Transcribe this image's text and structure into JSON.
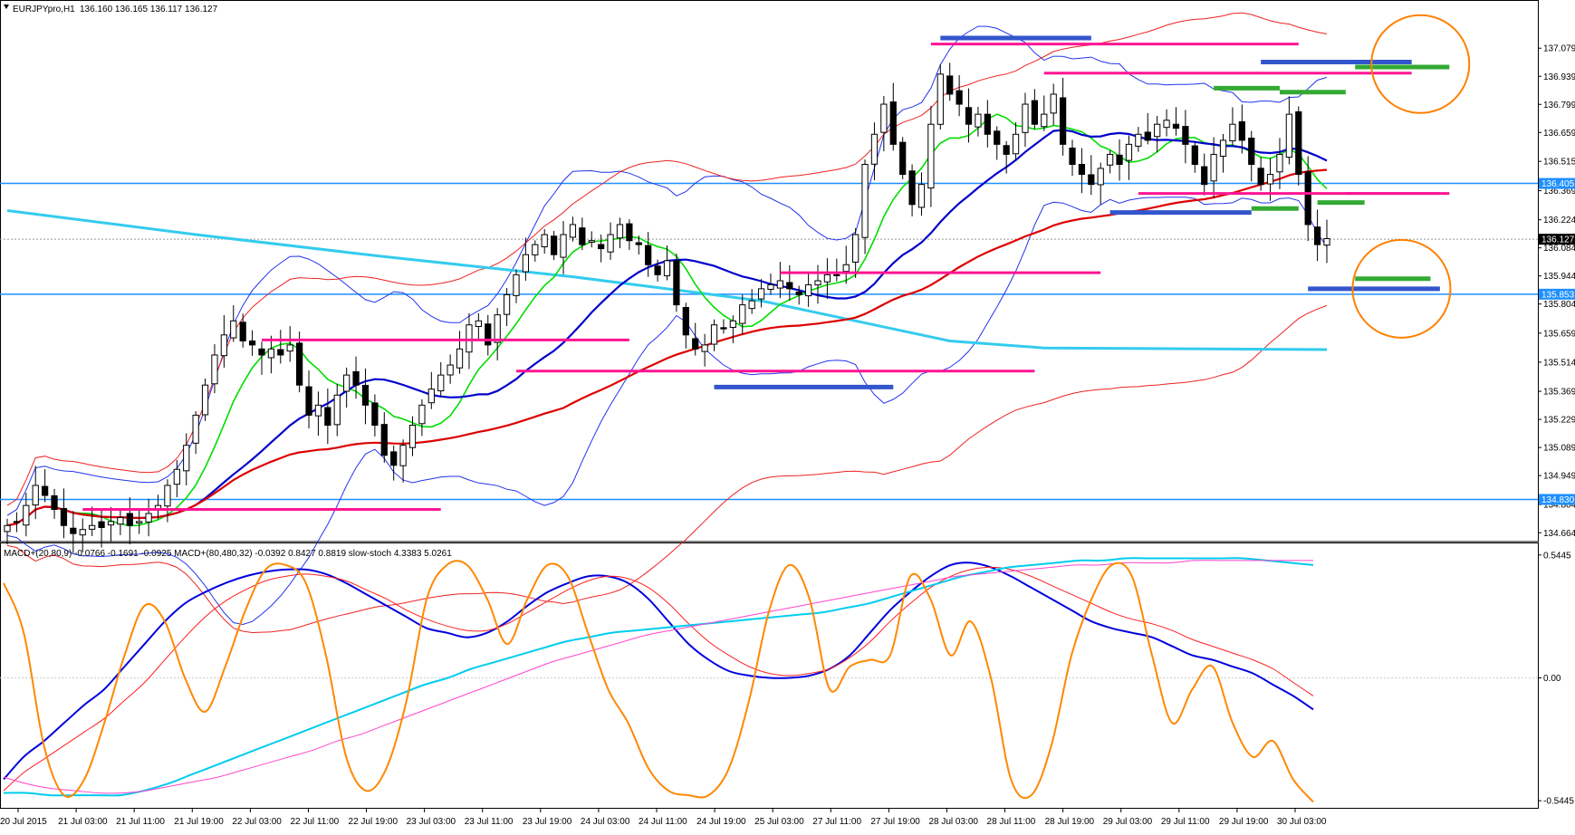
{
  "chart_data": [
    {
      "type": "candlestick",
      "header": {
        "symbol": "EURJPYpro,H1",
        "ohlc": "136.160 136.165 136.117 136.127"
      },
      "ylim": [
        134.62,
        137.22
      ],
      "y_ticks": [
        "137.079",
        "136.939",
        "136.799",
        "136.659",
        "136.515",
        "136.369",
        "136.224",
        "136.084",
        "135.944",
        "135.804",
        "135.659",
        "135.514",
        "135.369",
        "135.229",
        "135.089",
        "134.949",
        "134.804",
        "134.664"
      ],
      "price_boxes": [
        "136.405",
        "136.127",
        "135.853",
        "134.830"
      ],
      "current_price": 136.127,
      "levels_lightblue": [
        136.405,
        135.853,
        134.83
      ],
      "x_labels": [
        "20 Jul 2015",
        "21 Jul 03:00",
        "21 Jul 11:00",
        "21 Jul 19:00",
        "22 Jul 03:00",
        "22 Jul 11:00",
        "22 Jul 19:00",
        "23 Jul 03:00",
        "23 Jul 11:00",
        "23 Jul 19:00",
        "24 Jul 03:00",
        "24 Jul 11:00",
        "24 Jul 19:00",
        "25 Jul 03:00",
        "27 Jul 11:00",
        "27 Jul 19:00",
        "28 Jul 03:00",
        "28 Jul 11:00",
        "28 Jul 19:00",
        "29 Jul 03:00",
        "29 Jul 11:00",
        "29 Jul 19:00",
        "30 Jul 03:00"
      ],
      "close_path": [
        134.7,
        134.72,
        134.8,
        134.9,
        134.85,
        134.78,
        134.7,
        134.66,
        134.68,
        134.7,
        134.69,
        134.72,
        134.74,
        134.7,
        134.72,
        134.76,
        134.8,
        134.9,
        134.98,
        135.1,
        135.25,
        135.4,
        135.55,
        135.65,
        135.72,
        135.62,
        135.6,
        135.55,
        135.58,
        135.55,
        135.6,
        135.4,
        135.25,
        135.3,
        135.2,
        135.35,
        135.45,
        135.4,
        135.3,
        135.2,
        135.05,
        135.0,
        135.1,
        135.2,
        135.3,
        135.38,
        135.45,
        135.5,
        135.58,
        135.7,
        135.72,
        135.6,
        135.75,
        135.85,
        135.95,
        136.05,
        136.1,
        136.15,
        136.05,
        136.15,
        136.2,
        136.1,
        136.12,
        136.08,
        136.15,
        136.2,
        136.12,
        136.1,
        136.0,
        135.95,
        136.02,
        135.8,
        135.65,
        135.58,
        135.6,
        135.7,
        135.68,
        135.72,
        135.8,
        135.82,
        135.88,
        135.9,
        135.92,
        135.88,
        135.85,
        135.9,
        135.92,
        135.95,
        135.95,
        136.0,
        136.15,
        136.5,
        136.65,
        136.8,
        136.6,
        136.45,
        136.3,
        136.4,
        136.7,
        136.95,
        136.85,
        136.8,
        136.7,
        136.75,
        136.65,
        136.6,
        136.55,
        136.65,
        136.8,
        136.7,
        136.75,
        136.85,
        136.6,
        136.5,
        136.45,
        136.4,
        136.48,
        136.55,
        136.5,
        136.6,
        136.65,
        136.62,
        136.7,
        136.72,
        136.68,
        136.6,
        136.5,
        136.4,
        136.55,
        136.62,
        136.7,
        136.62,
        136.5,
        136.4,
        136.45,
        136.55,
        136.75,
        136.45,
        136.2,
        136.1,
        136.13
      ],
      "series": [
        {
          "name": "",
          "color": "#00dd00",
          "period": 8
        },
        {
          "name": "",
          "color": "#0000cc",
          "period": 21
        },
        {
          "name": "",
          "color": "#dd0000",
          "period": 60
        }
      ],
      "sma200_points": [
        [
          0,
          136.27
        ],
        [
          20,
          136.15
        ],
        [
          40,
          136.04
        ],
        [
          60,
          135.94
        ],
        [
          80,
          135.82
        ],
        [
          90,
          135.72
        ],
        [
          100,
          135.62
        ],
        [
          110,
          135.585
        ],
        [
          140,
          135.577
        ]
      ],
      "bollinger_note": "",
      "hlines_magenta": [
        {
          "i0": 8,
          "i1": 46,
          "y": 134.78
        },
        {
          "i0": 27,
          "i1": 66,
          "y": 135.625
        },
        {
          "i0": 54,
          "i1": 109,
          "y": 135.47
        },
        {
          "i0": 82,
          "i1": 116,
          "y": 135.96
        },
        {
          "i0": 98,
          "i1": 137,
          "y": 137.1
        },
        {
          "i0": 110,
          "i1": 149,
          "y": 136.955
        },
        {
          "i0": 120,
          "i1": 153,
          "y": 136.355
        },
        {
          "i0": 142,
          "i1": 152,
          "y": 136.355
        }
      ],
      "hlines_blue": [
        {
          "i0": 99,
          "i1": 115,
          "y": 137.13
        },
        {
          "i0": 133,
          "i1": 149,
          "y": 137.01
        },
        {
          "i0": 75,
          "i1": 94,
          "y": 135.39
        },
        {
          "i0": 117,
          "i1": 132,
          "y": 136.26
        },
        {
          "i0": 138,
          "i1": 152,
          "y": 135.88
        }
      ],
      "hlines_green": [
        {
          "i0": 143,
          "i1": 153,
          "y": 136.985
        },
        {
          "i0": 128,
          "i1": 135,
          "y": 136.88
        },
        {
          "i0": 135,
          "i1": 142,
          "y": 136.86
        },
        {
          "i0": 132,
          "i1": 137,
          "y": 136.28
        },
        {
          "i0": 139,
          "i1": 144,
          "y": 136.31
        },
        {
          "i0": 143,
          "i1": 151,
          "y": 135.93
        }
      ],
      "circles": [
        {
          "i": 148,
          "y": 137.0
        },
        {
          "i": 146,
          "y": 135.88
        }
      ]
    },
    {
      "type": "line",
      "header": "MACD+(20,80,9) -0.0766 -0.1691 -0.0925  MACD+(80,480,32) -0.0392 0.8427 0.8819  slow-stoch 4.3383 5.0261",
      "ylim": [
        -0.58,
        0.58
      ],
      "y_ticks": [
        "0.5445",
        "0.00",
        "-0.5445"
      ],
      "series": [
        {
          "name": "",
          "color": "#0000dd",
          "values": [
            -0.45,
            -0.35,
            -0.28,
            -0.2,
            -0.12,
            -0.05,
            0.05,
            0.15,
            0.25,
            0.33,
            0.38,
            0.42,
            0.45,
            0.47,
            0.48,
            0.48,
            0.46,
            0.42,
            0.37,
            0.32,
            0.27,
            0.22,
            0.2,
            0.18,
            0.2,
            0.25,
            0.32,
            0.38,
            0.42,
            0.45,
            0.45,
            0.42,
            0.35,
            0.25,
            0.15,
            0.08,
            0.03,
            0.01,
            0.0,
            0.0,
            0.01,
            0.04,
            0.1,
            0.2,
            0.3,
            0.38,
            0.45,
            0.5,
            0.51,
            0.49,
            0.45,
            0.4,
            0.35,
            0.3,
            0.25,
            0.22,
            0.2,
            0.18,
            0.14,
            0.1,
            0.08,
            0.05,
            0.02,
            -0.03,
            -0.08,
            -0.14
          ]
        },
        {
          "name": "",
          "color": "#ff2020",
          "values": [
            -0.5,
            -0.42,
            -0.36,
            -0.3,
            -0.24,
            -0.18,
            -0.1,
            -0.02,
            0.08,
            0.18,
            0.27,
            0.34,
            0.39,
            0.43,
            0.45,
            0.46,
            0.45,
            0.43,
            0.39,
            0.35,
            0.3,
            0.26,
            0.23,
            0.21,
            0.21,
            0.24,
            0.29,
            0.34,
            0.39,
            0.43,
            0.45,
            0.44,
            0.4,
            0.33,
            0.24,
            0.16,
            0.1,
            0.05,
            0.02,
            0.01,
            0.02,
            0.04,
            0.09,
            0.16,
            0.25,
            0.33,
            0.4,
            0.45,
            0.48,
            0.49,
            0.48,
            0.45,
            0.41,
            0.37,
            0.33,
            0.29,
            0.26,
            0.24,
            0.21,
            0.17,
            0.14,
            0.11,
            0.08,
            0.04,
            -0.02,
            -0.08
          ]
        },
        {
          "name": "",
          "color": "#00ccee",
          "values": [
            -0.51,
            -0.51,
            -0.52,
            -0.52,
            -0.52,
            -0.52,
            -0.5,
            -0.47,
            -0.43,
            -0.39,
            -0.35,
            -0.31,
            -0.27,
            -0.23,
            -0.19,
            -0.15,
            -0.11,
            -0.07,
            -0.03,
            0.0,
            0.04,
            0.07,
            0.1,
            0.13,
            0.16,
            0.18,
            0.2,
            0.21,
            0.22,
            0.23,
            0.24,
            0.25,
            0.26,
            0.27,
            0.28,
            0.29,
            0.31,
            0.33,
            0.36,
            0.39,
            0.42,
            0.45,
            0.47,
            0.49,
            0.5,
            0.51,
            0.52,
            0.52,
            0.53,
            0.53,
            0.53,
            0.53,
            0.53,
            0.53,
            0.52,
            0.51,
            0.5
          ]
        },
        {
          "name": "",
          "color": "#ff44cc",
          "values": [
            -0.44,
            -0.47,
            -0.49,
            -0.5,
            -0.51,
            -0.51,
            -0.5,
            -0.48,
            -0.46,
            -0.44,
            -0.41,
            -0.38,
            -0.35,
            -0.32,
            -0.28,
            -0.25,
            -0.21,
            -0.17,
            -0.13,
            -0.09,
            -0.05,
            -0.01,
            0.03,
            0.07,
            0.1,
            0.13,
            0.16,
            0.19,
            0.21,
            0.23,
            0.25,
            0.27,
            0.29,
            0.31,
            0.33,
            0.35,
            0.37,
            0.39,
            0.41,
            0.43,
            0.45,
            0.46,
            0.47,
            0.48,
            0.49,
            0.5,
            0.5,
            0.51,
            0.51,
            0.51,
            0.52,
            0.52,
            0.52,
            0.52,
            0.52,
            0.52
          ]
        },
        {
          "name": "",
          "color": "#ff8800",
          "values": [
            0.42,
            0.2,
            -0.3,
            -0.52,
            -0.45,
            -0.2,
            0.1,
            0.32,
            0.25,
            0.0,
            -0.15,
            0.05,
            0.3,
            0.48,
            0.5,
            0.42,
            0.1,
            -0.35,
            -0.5,
            -0.4,
            -0.1,
            0.35,
            0.5,
            0.5,
            0.35,
            0.15,
            0.35,
            0.5,
            0.45,
            0.2,
            -0.05,
            -0.2,
            -0.4,
            -0.5,
            -0.52,
            -0.52,
            -0.4,
            -0.1,
            0.3,
            0.5,
            0.35,
            -0.05,
            0.05,
            0.08,
            0.1,
            0.45,
            0.35,
            0.1,
            0.25,
            0.0,
            -0.45,
            -0.52,
            -0.3,
            0.1,
            0.35,
            0.5,
            0.45,
            0.1,
            -0.2,
            -0.05,
            0.05,
            -0.2,
            -0.35,
            -0.28,
            -0.45,
            -0.55
          ]
        }
      ]
    }
  ],
  "colors": {
    "bull_body": "#ffffff",
    "bear_body": "#000000",
    "level_lightblue": "#1e90ff",
    "magenta": "#ff1493",
    "blue_bar": "#3355cc",
    "green_bar": "#33aa33",
    "orange_circle": "#ff8000",
    "sma200": "#33ccee"
  }
}
